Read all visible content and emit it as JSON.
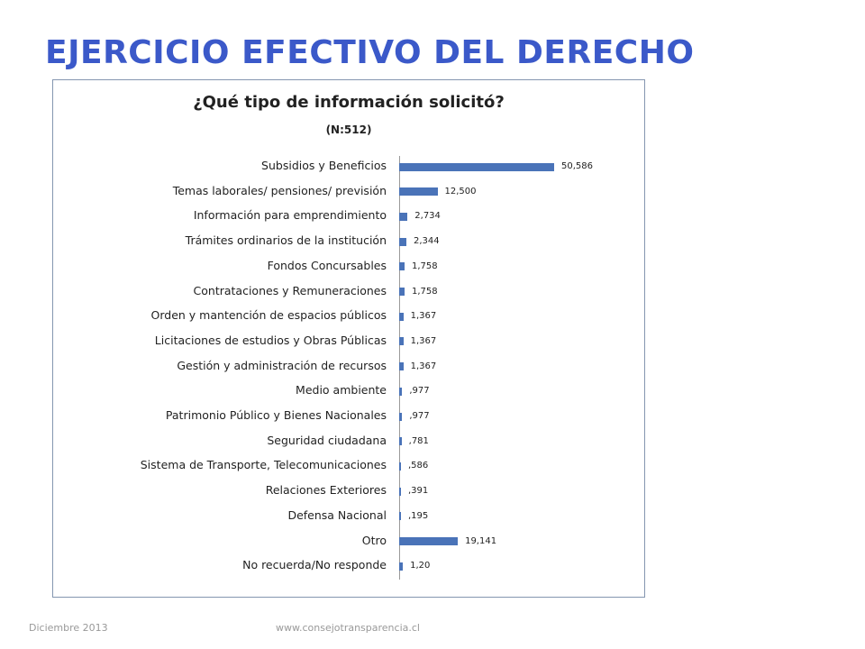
{
  "slide": {
    "title": "EJERCICIO EFECTIVO DEL DERECHO"
  },
  "footer": {
    "date": "Diciembre 2013",
    "url": "www.consejotransparencia.cl"
  },
  "colors": {
    "title": "#3b59c9",
    "bar": "#4a73b8",
    "frame": "#8496b0"
  },
  "chart_data": {
    "type": "bar",
    "orientation": "horizontal",
    "title": "¿Qué tipo de información solicitó?",
    "subtitle": "(N:512)",
    "categories": [
      "Subsidios y Beneficios",
      "Temas laborales/ pensiones/ previsión",
      "Información para emprendimiento",
      "Trámites ordinarios de la institución",
      "Fondos Concursables",
      "Contrataciones  y Remuneraciones",
      "Orden y mantención de espacios públicos",
      "Licitaciones de estudios y Obras Públicas",
      "Gestión y administración de recursos",
      "Medio ambiente",
      "Patrimonio Público y Bienes Nacionales",
      "Seguridad ciudadana",
      "Sistema de Transporte, Telecomunicaciones",
      "Relaciones Exteriores",
      "Defensa Nacional",
      "Otro",
      "No recuerda/No responde"
    ],
    "values": [
      50.586,
      12.5,
      2.734,
      2.344,
      1.758,
      1.758,
      1.367,
      1.367,
      1.367,
      0.977,
      0.977,
      0.781,
      0.586,
      0.391,
      0.195,
      19.141,
      1.2
    ],
    "value_labels": [
      "50,586",
      "12,500",
      "2,734",
      "2,344",
      "1,758",
      "1,758",
      "1,367",
      "1,367",
      "1,367",
      ",977",
      ",977",
      ",781",
      ",586",
      ",391",
      ",195",
      "19,141",
      "1,20"
    ],
    "xlim": [
      0,
      60
    ],
    "grid": false,
    "legend": "none"
  }
}
